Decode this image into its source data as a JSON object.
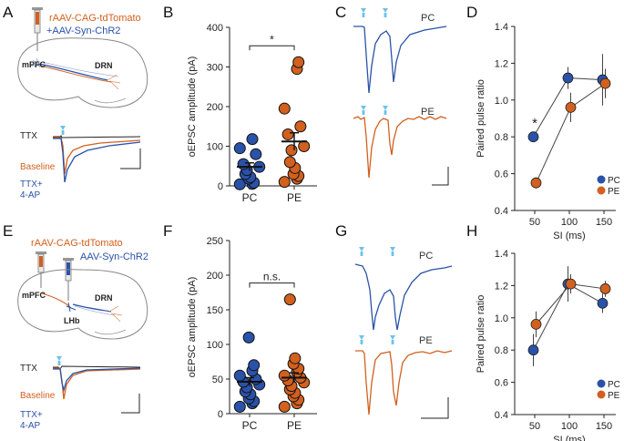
{
  "colors": {
    "pc": "#2a52a8",
    "pe": "#d2601e",
    "ttx": "#222222",
    "light": "#6ec1ea"
  },
  "panels": {
    "A": {
      "letter": "A",
      "injection_red": "rAAV-CAG-tdTomato",
      "injection_blue": "+AAV-Syn-ChR2",
      "region_source": "mPFC",
      "region_target": "DRN",
      "trace_labels": [
        "TTX",
        "Baseline",
        "TTX+",
        "4-AP"
      ]
    },
    "C": {
      "letter": "C",
      "label_pc": "PC",
      "label_pe": "PE"
    },
    "E": {
      "letter": "E",
      "injection_red": "rAAV-CAG-tdTomato",
      "injection_blue": "AAV-Syn-ChR2",
      "region_source": "mPFC",
      "region_target": "DRN",
      "region_mid": "LHb",
      "trace_labels": [
        "TTX",
        "Baseline",
        "TTX+",
        "4-AP"
      ]
    },
    "G": {
      "letter": "G",
      "label_pc": "PC",
      "label_pe": "PE"
    }
  },
  "chart_data": [
    {
      "panel": "B",
      "type": "scatter",
      "ylabel": "oEPSC amplitude (pA)",
      "ylim": [
        0,
        400
      ],
      "yticks": [
        "0",
        "100",
        "200",
        "300",
        "400"
      ],
      "categories": [
        "PC",
        "PE"
      ],
      "significance": "*",
      "series": [
        {
          "name": "PC",
          "mean": 48,
          "sem": 10,
          "points": [
            4,
            5,
            8,
            18,
            22,
            30,
            40,
            48,
            55,
            80,
            95,
            118
          ]
        },
        {
          "name": "PE",
          "mean": 112,
          "sem": 22,
          "points": [
            10,
            18,
            25,
            30,
            45,
            60,
            90,
            100,
            130,
            150,
            195,
            295,
            312
          ]
        }
      ]
    },
    {
      "panel": "D",
      "type": "line",
      "ylabel": "Paired pulse ratio",
      "xlabel": "SI (ms)",
      "x": [
        50,
        100,
        150
      ],
      "xticks": [
        "50",
        "100",
        "150"
      ],
      "ylim": [
        0.4,
        1.4
      ],
      "yticks": [
        "0.4",
        "0.6",
        "0.8",
        "1.0",
        "1.2",
        "1.4"
      ],
      "annotation": "*",
      "legend": [
        "PC",
        "PE"
      ],
      "series": [
        {
          "name": "PC",
          "values": [
            0.8,
            1.12,
            1.11
          ],
          "err": [
            0.02,
            0.06,
            0.14
          ]
        },
        {
          "name": "PE",
          "values": [
            0.55,
            0.96,
            1.09
          ],
          "err": [
            0.03,
            0.08,
            0.08
          ]
        }
      ]
    },
    {
      "panel": "F",
      "type": "scatter",
      "ylabel": "oEPSC amplitude (pA)",
      "ylim": [
        0,
        250
      ],
      "yticks": [
        "0",
        "50",
        "100",
        "150",
        "200",
        "250"
      ],
      "categories": [
        "PC",
        "PE"
      ],
      "significance": "n.s.",
      "series": [
        {
          "name": "PC",
          "mean": 46,
          "sem": 6,
          "points": [
            10,
            15,
            18,
            22,
            28,
            32,
            38,
            42,
            46,
            50,
            55,
            62,
            70,
            110
          ]
        },
        {
          "name": "PE",
          "mean": 52,
          "sem": 7,
          "points": [
            10,
            15,
            20,
            25,
            30,
            35,
            40,
            45,
            48,
            52,
            55,
            60,
            65,
            72,
            80,
            165
          ]
        }
      ]
    },
    {
      "panel": "H",
      "type": "line",
      "ylabel": "Paired pulse ratio",
      "xlabel": "SI (ms)",
      "x": [
        50,
        100,
        150
      ],
      "xticks": [
        "50",
        "100",
        "150"
      ],
      "ylim": [
        0.4,
        1.4
      ],
      "yticks": [
        "0.4",
        "0.6",
        "0.8",
        "1.0",
        "1.2",
        "1.4"
      ],
      "legend": [
        "PC",
        "PE"
      ],
      "series": [
        {
          "name": "PC",
          "values": [
            0.8,
            1.21,
            1.09
          ],
          "err": [
            0.1,
            0.11,
            0.06
          ]
        },
        {
          "name": "PE",
          "values": [
            0.96,
            1.21,
            1.18
          ],
          "err": [
            0.08,
            0.06,
            0.05
          ]
        }
      ]
    }
  ]
}
